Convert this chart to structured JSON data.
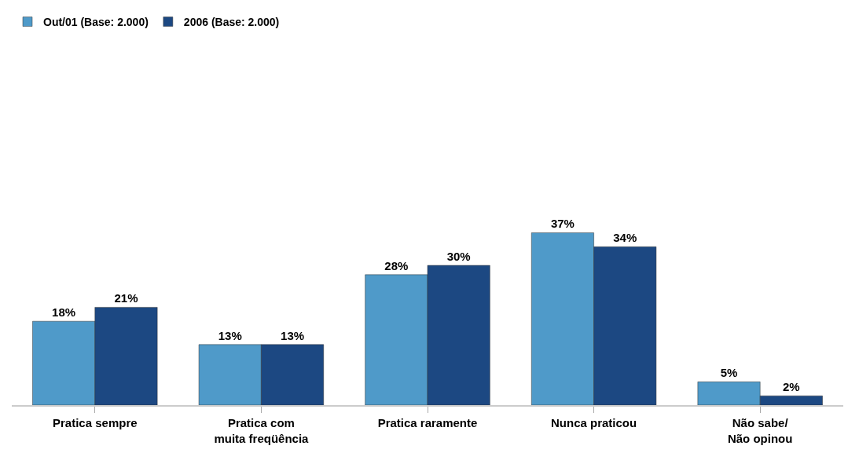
{
  "chart_data": {
    "type": "bar",
    "categories": [
      "Pratica sempre",
      "Pratica com\nmuita freqüência",
      "Pratica raramente",
      "Nunca praticou",
      "Não sabe/\nNão opinou"
    ],
    "series": [
      {
        "name": "Out/01 (Base: 2.000)",
        "color": "#4f9ac9",
        "values": [
          18,
          13,
          28,
          37,
          5
        ],
        "value_labels": [
          "18%",
          "13%",
          "28%",
          "37%",
          "5%"
        ]
      },
      {
        "name": "2006 (Base: 2.000)",
        "color": "#1c4882",
        "values": [
          21,
          13,
          30,
          34,
          2
        ],
        "value_labels": [
          "21%",
          "13%",
          "30%",
          "34%",
          "2%"
        ]
      }
    ],
    "legend": "top left"
  }
}
